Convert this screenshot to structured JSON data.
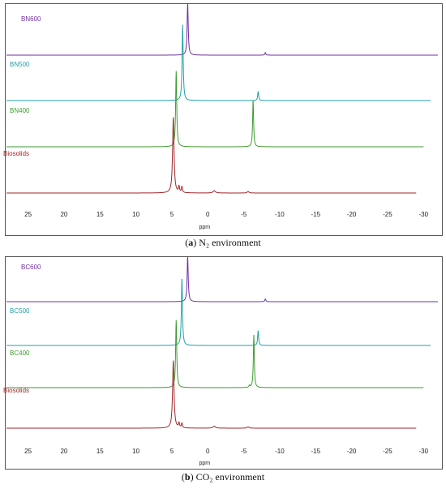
{
  "colors": {
    "spec1": "#7030a0",
    "spec2": "#1f9fa6",
    "spec3": "#3d9b2f",
    "spec4": "#a0262a",
    "axis": "#444444",
    "frame": "#555555"
  },
  "chart_data": [
    {
      "type": "line",
      "title": "",
      "xlabel": "ppm",
      "ylabel": "",
      "xlim": [
        28,
        -32
      ],
      "x_reversed": true,
      "grid": false,
      "x_ticks": [
        25,
        20,
        15,
        10,
        5,
        0,
        -5,
        -10,
        -15,
        -20,
        -25,
        -30
      ],
      "x_tick_labels": [
        "25",
        "20",
        "15",
        "10",
        "5",
        "0",
        "-5",
        "-10",
        "-15",
        "-20",
        "-25",
        "-30"
      ],
      "caption_prefix": "(a)",
      "caption_text": "N₂ environment",
      "series": [
        {
          "name": "BN600",
          "color": "#7030a0",
          "x_start": 28,
          "x_end": -32,
          "peaks": [
            {
              "ppm": 2.8,
              "height": 1.0,
              "width": 0.09
            },
            {
              "ppm": -8.0,
              "height": 0.05,
              "width": 0.08
            }
          ]
        },
        {
          "name": "BN500",
          "color": "#1f9fa6",
          "x_start": 28,
          "x_end": -31,
          "peaks": [
            {
              "ppm": 3.5,
              "height": 1.0,
              "width": 0.09
            },
            {
              "ppm": -7.0,
              "height": 0.12,
              "width": 0.08
            }
          ]
        },
        {
          "name": "BN400",
          "color": "#3d9b2f",
          "x_start": 28,
          "x_end": -30,
          "peaks": [
            {
              "ppm": 4.4,
              "height": 1.0,
              "width": 0.09
            },
            {
              "ppm": -6.3,
              "height": 0.62,
              "width": 0.08
            }
          ]
        },
        {
          "name": "Biosolids",
          "color": "#a0262a",
          "x_start": 28,
          "x_end": -29,
          "peaks": [
            {
              "ppm": 4.8,
              "height": 1.0,
              "width": 0.12
            },
            {
              "ppm": 4.0,
              "height": 0.08,
              "width": 0.08
            },
            {
              "ppm": 3.6,
              "height": 0.08,
              "width": 0.08
            },
            {
              "ppm": -0.9,
              "height": 0.03,
              "width": 0.2
            },
            {
              "ppm": -5.6,
              "height": 0.02,
              "width": 0.15
            }
          ]
        }
      ]
    },
    {
      "type": "line",
      "title": "",
      "xlabel": "ppm",
      "ylabel": "",
      "xlim": [
        28,
        -32
      ],
      "x_reversed": true,
      "grid": false,
      "x_ticks": [
        25,
        20,
        15,
        10,
        5,
        0,
        -5,
        -10,
        -15,
        -20,
        -25,
        -30
      ],
      "x_tick_labels": [
        "25",
        "20",
        "15",
        "10",
        "5",
        "0",
        "-5",
        "-10",
        "-15",
        "-20",
        "-25",
        "-30"
      ],
      "caption_prefix": "(b)",
      "caption_text": "CO₂ environment",
      "series": [
        {
          "name": "BC600",
          "color": "#7030a0",
          "x_start": 28,
          "x_end": -32,
          "peaks": [
            {
              "ppm": 2.8,
              "height": 1.0,
              "width": 0.09
            },
            {
              "ppm": -8.0,
              "height": 0.06,
              "width": 0.08
            }
          ]
        },
        {
          "name": "BC500",
          "color": "#1f9fa6",
          "x_start": 28,
          "x_end": -31,
          "peaks": [
            {
              "ppm": 3.6,
              "height": 1.0,
              "width": 0.09
            },
            {
              "ppm": -7.0,
              "height": 0.22,
              "width": 0.08
            }
          ]
        },
        {
          "name": "BC400",
          "color": "#3d9b2f",
          "x_start": 28,
          "x_end": -30,
          "peaks": [
            {
              "ppm": 4.4,
              "height": 1.0,
              "width": 0.09
            },
            {
              "ppm": -6.4,
              "height": 0.78,
              "width": 0.08
            },
            {
              "ppm": -5.8,
              "height": 0.03,
              "width": 0.08
            }
          ]
        },
        {
          "name": "Biosolids",
          "color": "#a0262a",
          "x_start": 28,
          "x_end": -29,
          "peaks": [
            {
              "ppm": 4.8,
              "height": 1.0,
              "width": 0.12
            },
            {
              "ppm": 4.0,
              "height": 0.07,
              "width": 0.08
            },
            {
              "ppm": 3.6,
              "height": 0.07,
              "width": 0.08
            },
            {
              "ppm": -0.9,
              "height": 0.03,
              "width": 0.2
            },
            {
              "ppm": -5.6,
              "height": 0.02,
              "width": 0.15
            }
          ]
        }
      ]
    }
  ]
}
